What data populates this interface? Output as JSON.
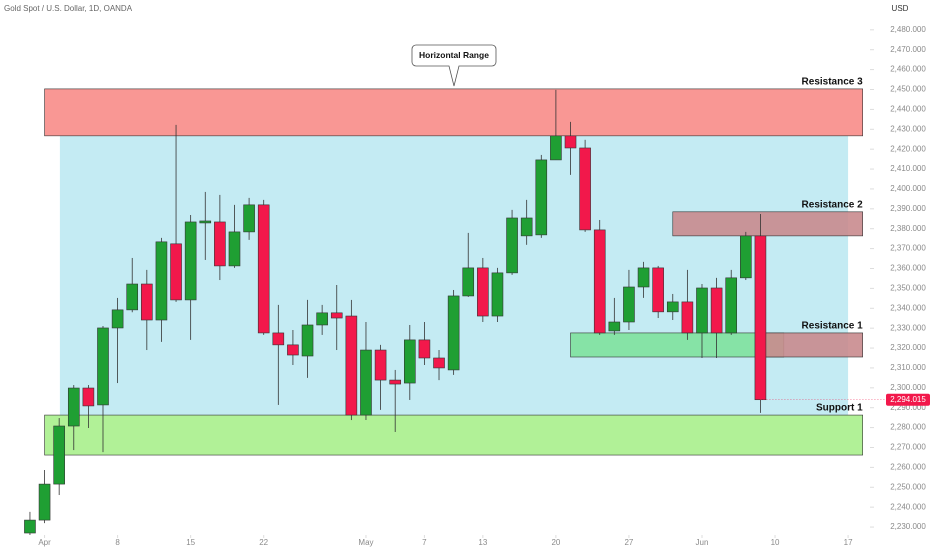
{
  "chart_data": {
    "type": "candlestick",
    "title": "Gold Spot / U.S. Dollar, 1D, OANDA",
    "currency": "USD",
    "up_color": "#1f9f33",
    "down_color": "#f2184b",
    "x": [
      0,
      1,
      2,
      3,
      4,
      5,
      6,
      7,
      8,
      9,
      10,
      11,
      12,
      13,
      14,
      15,
      16,
      17,
      18,
      19,
      20,
      21,
      22,
      23,
      24,
      25,
      26,
      27,
      28,
      29,
      30,
      31,
      32,
      33,
      34,
      35,
      36,
      37,
      38,
      39,
      40,
      41,
      42,
      43,
      44,
      45,
      46,
      47,
      48,
      49,
      50
    ],
    "open": [
      2227.0,
      2233.5,
      2251.6,
      2280.8,
      2299.9,
      2291.4,
      2330.1,
      2339.2,
      2352.2,
      2334.1,
      2372.4,
      2344.2,
      2382.9,
      2383.4,
      2361.3,
      2378.4,
      2392.0,
      2327.6,
      2321.6,
      2316.0,
      2331.6,
      2337.7,
      2336.1,
      2286.3,
      2319.0,
      2303.9,
      2302.4,
      2324.1,
      2315.0,
      2309.0,
      2346.2,
      2360.3,
      2336.1,
      2357.8,
      2376.4,
      2376.9,
      2414.6,
      2426.7,
      2420.6,
      2379.4,
      2328.6,
      2333.1,
      2350.7,
      2360.3,
      2338.2,
      2343.2,
      2327.6,
      2350.2,
      2327.6,
      2355.3,
      2376.4
    ],
    "high": [
      2237.6,
      2258.7,
      2284.8,
      2301.4,
      2301.4,
      2331.1,
      2345.2,
      2365.3,
      2359.3,
      2375.4,
      2432.2,
      2386.9,
      2398.5,
      2397.0,
      2392.0,
      2395.5,
      2394.5,
      2341.7,
      2329.1,
      2344.2,
      2341.7,
      2351.7,
      2344.2,
      2333.1,
      2321.6,
      2309.0,
      2331.6,
      2333.1,
      2319.0,
      2349.2,
      2377.9,
      2365.3,
      2360.3,
      2389.5,
      2394.5,
      2417.1,
      2449.8,
      2433.7,
      2424.7,
      2384.4,
      2345.2,
      2359.3,
      2363.3,
      2361.3,
      2347.2,
      2359.3,
      2352.2,
      2355.3,
      2359.3,
      2378.4,
      2387.4
    ],
    "low": [
      2226.0,
      2232.0,
      2246.1,
      2268.7,
      2279.8,
      2267.7,
      2302.4,
      2338.0,
      2319.0,
      2323.1,
      2343.2,
      2324.1,
      2364.3,
      2354.2,
      2360.3,
      2374.4,
      2326.6,
      2291.4,
      2311.5,
      2305.0,
      2326.6,
      2319.0,
      2283.8,
      2283.8,
      2288.9,
      2277.8,
      2293.9,
      2311.5,
      2303.9,
      2306.5,
      2345.7,
      2333.1,
      2333.1,
      2356.8,
      2371.9,
      2375.4,
      2414.6,
      2407.1,
      2378.4,
      2326.6,
      2326.6,
      2329.1,
      2345.2,
      2335.1,
      2334.1,
      2324.1,
      2315.0,
      2315.0,
      2326.6,
      2354.2,
      2287.4
    ],
    "close": [
      2233.5,
      2251.6,
      2280.8,
      2299.9,
      2290.9,
      2330.1,
      2339.2,
      2352.2,
      2334.1,
      2373.4,
      2344.2,
      2383.4,
      2383.9,
      2361.3,
      2378.4,
      2392.0,
      2327.6,
      2321.6,
      2316.5,
      2331.6,
      2337.7,
      2335.1,
      2286.3,
      2319.0,
      2303.9,
      2301.9,
      2324.1,
      2315.0,
      2310.0,
      2346.2,
      2360.3,
      2336.1,
      2357.8,
      2385.4,
      2385.4,
      2414.6,
      2426.7,
      2420.6,
      2379.4,
      2327.6,
      2333.1,
      2350.7,
      2360.3,
      2338.2,
      2343.2,
      2327.6,
      2350.2,
      2327.6,
      2355.3,
      2376.4,
      2294.015
    ],
    "last_price_label": "2,294.015",
    "xlim": [
      -2.05,
      57.5
    ],
    "ylim": [
      2226,
      2495
    ],
    "xticks": [
      {
        "value": 1,
        "label": "Apr"
      },
      {
        "value": 6,
        "label": "8"
      },
      {
        "value": 11,
        "label": "15"
      },
      {
        "value": 16,
        "label": "22"
      },
      {
        "value": 23,
        "label": "May"
      },
      {
        "value": 27,
        "label": "7"
      },
      {
        "value": 31,
        "label": "13"
      },
      {
        "value": 36,
        "label": "20"
      },
      {
        "value": 41,
        "label": "27"
      },
      {
        "value": 46,
        "label": "Jun"
      },
      {
        "value": 51,
        "label": "10"
      },
      {
        "value": 56,
        "label": "17"
      }
    ],
    "yticks": [
      {
        "value": 2230,
        "label": "2,230.000"
      },
      {
        "value": 2240,
        "label": "2,240.000"
      },
      {
        "value": 2250,
        "label": "2,250.000"
      },
      {
        "value": 2260,
        "label": "2,260.000"
      },
      {
        "value": 2270,
        "label": "2,270.000"
      },
      {
        "value": 2280,
        "label": "2,280.000"
      },
      {
        "value": 2290,
        "label": "2,290.000"
      },
      {
        "value": 2300,
        "label": "2,300.000"
      },
      {
        "value": 2310,
        "label": "2,310.000"
      },
      {
        "value": 2320,
        "label": "2,320.000"
      },
      {
        "value": 2330,
        "label": "2,330.000"
      },
      {
        "value": 2340,
        "label": "2,340.000"
      },
      {
        "value": 2350,
        "label": "2,350.000"
      },
      {
        "value": 2360,
        "label": "2,360.000"
      },
      {
        "value": 2370,
        "label": "2,370.000"
      },
      {
        "value": 2380,
        "label": "2,380.000"
      },
      {
        "value": 2390,
        "label": "2,390.000"
      },
      {
        "value": 2400,
        "label": "2,400.000"
      },
      {
        "value": 2410,
        "label": "2,410.000"
      },
      {
        "value": 2420,
        "label": "2,420.000"
      },
      {
        "value": 2430,
        "label": "2,430.000"
      },
      {
        "value": 2440,
        "label": "2,440.000"
      },
      {
        "value": 2450,
        "label": "2,450.000"
      },
      {
        "value": 2460,
        "label": "2,460.000"
      },
      {
        "value": 2470,
        "label": "2,470.000"
      },
      {
        "value": 2480,
        "label": "2,480.000"
      }
    ],
    "zones": [
      {
        "label": "Horizontal Range",
        "style": "callout",
        "x": [
          2.05,
          56
        ],
        "y": [
          2286.3,
          2426.7
        ],
        "color": "#c4ebf3"
      },
      {
        "label": "Resistance 3",
        "x": [
          1,
          57
        ],
        "y": [
          2426.7,
          2450.3
        ],
        "color": "#f88c88"
      },
      {
        "label": "Resistance 2",
        "x": [
          44,
          57
        ],
        "y": [
          2376.4,
          2388.5
        ],
        "color": "#c98b8e"
      },
      {
        "x": [
          37,
          51.6
        ],
        "y": [
          2315.5,
          2327.6
        ],
        "color": "#7fe29d"
      },
      {
        "label": "Resistance 1",
        "x": [
          50.1,
          57
        ],
        "y": [
          2315.5,
          2327.6
        ],
        "color": "#c98b8e"
      },
      {
        "label": "Support 1",
        "x": [
          1,
          57
        ],
        "y": [
          2266.2,
          2286.3
        ],
        "color": "#a8f08c"
      }
    ]
  }
}
